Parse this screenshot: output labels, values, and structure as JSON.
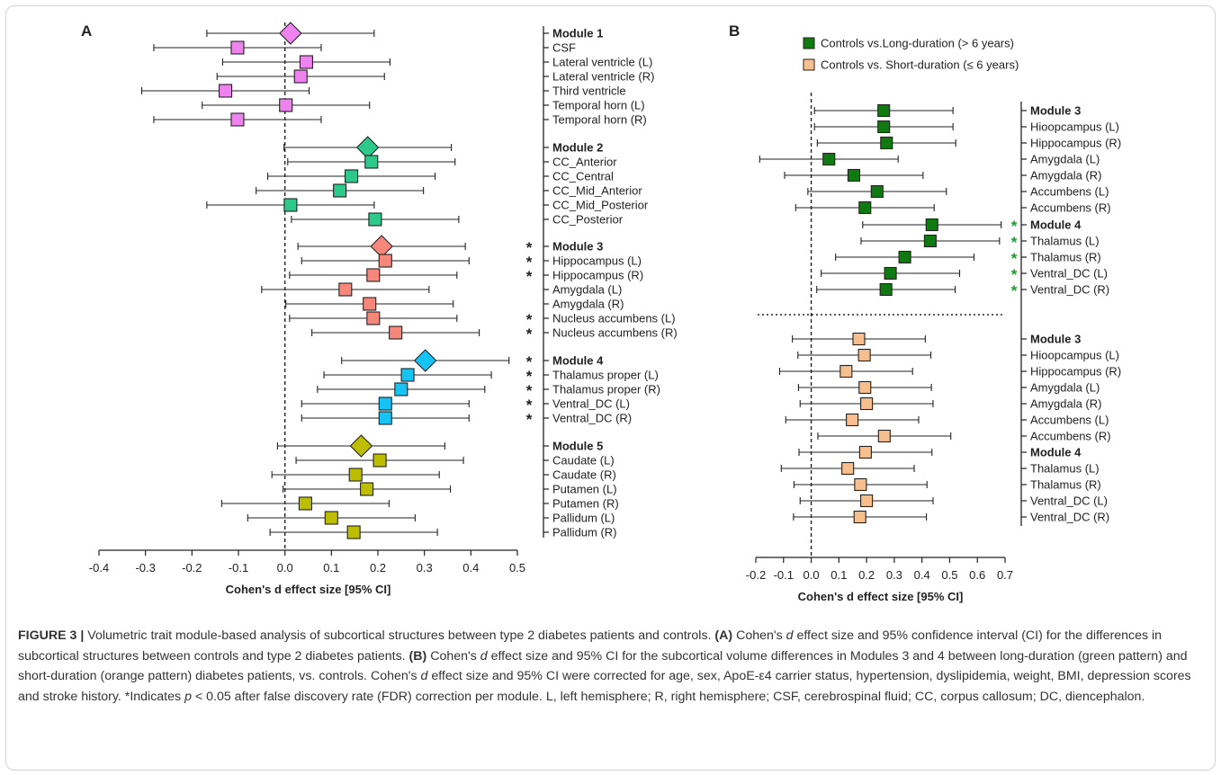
{
  "chart_data": [
    {
      "panel": "A",
      "type": "forest",
      "xlabel": "Cohen's d effect size [95% CI]",
      "xlim": [
        -0.4,
        0.5
      ],
      "xticks": [
        "-0.4",
        "-0.3",
        "-0.2",
        "-0.1",
        "0.0",
        "0.1",
        "0.2",
        "0.3",
        "0.4",
        "0.5"
      ],
      "reference_line": 0,
      "rows": [
        {
          "label": "Module 1",
          "bold": true,
          "value": 0.012,
          "lo": -0.168,
          "hi": 0.192,
          "marker": "diamond",
          "color": "#ee82ee",
          "sig": false
        },
        {
          "label": "CSF",
          "value": -0.102,
          "lo": -0.282,
          "hi": 0.078,
          "marker": "square",
          "color": "#ee82ee",
          "sig": false
        },
        {
          "label": "Lateral ventricle (L)",
          "value": 0.046,
          "lo": -0.134,
          "hi": 0.226,
          "marker": "square",
          "color": "#ee82ee",
          "sig": false
        },
        {
          "label": "Lateral ventricle (R)",
          "value": 0.034,
          "lo": -0.146,
          "hi": 0.214,
          "marker": "square",
          "color": "#ee82ee",
          "sig": false
        },
        {
          "label": "Third ventricle",
          "value": -0.128,
          "lo": -0.308,
          "hi": 0.052,
          "marker": "square",
          "color": "#ee82ee",
          "sig": false
        },
        {
          "label": "Temporal horn (L)",
          "value": 0.002,
          "lo": -0.178,
          "hi": 0.182,
          "marker": "square",
          "color": "#ee82ee",
          "sig": false
        },
        {
          "label": "Temporal horn (R)",
          "value": -0.102,
          "lo": -0.282,
          "hi": 0.078,
          "marker": "square",
          "color": "#ee82ee",
          "sig": false
        },
        {
          "label": "Module 2",
          "bold": true,
          "value": 0.178,
          "lo": -0.002,
          "hi": 0.358,
          "marker": "diamond",
          "color": "#2dc98a",
          "sig": false
        },
        {
          "label": "CC_Anterior",
          "value": 0.186,
          "lo": 0.006,
          "hi": 0.366,
          "marker": "square",
          "color": "#2dc98a",
          "sig": false
        },
        {
          "label": "CC_Central",
          "value": 0.143,
          "lo": -0.037,
          "hi": 0.323,
          "marker": "square",
          "color": "#2dc98a",
          "sig": false
        },
        {
          "label": "CC_Mid_Anterior",
          "value": 0.118,
          "lo": -0.062,
          "hi": 0.298,
          "marker": "square",
          "color": "#2dc98a",
          "sig": false
        },
        {
          "label": "CC_Mid_Posterior",
          "value": 0.012,
          "lo": -0.168,
          "hi": 0.192,
          "marker": "square",
          "color": "#2dc98a",
          "sig": false
        },
        {
          "label": "CC_Posterior",
          "value": 0.194,
          "lo": 0.014,
          "hi": 0.374,
          "marker": "square",
          "color": "#2dc98a",
          "sig": false
        },
        {
          "label": "Module 3",
          "bold": true,
          "value": 0.208,
          "lo": 0.028,
          "hi": 0.388,
          "marker": "diamond",
          "color": "#f7877a",
          "sig": true
        },
        {
          "label": "Hippocampus (L)",
          "value": 0.216,
          "lo": 0.036,
          "hi": 0.396,
          "marker": "square",
          "color": "#f7877a",
          "sig": true
        },
        {
          "label": "Hippocampus (R)",
          "value": 0.19,
          "lo": 0.01,
          "hi": 0.37,
          "marker": "square",
          "color": "#f7877a",
          "sig": true
        },
        {
          "label": "Amygdala (L)",
          "value": 0.13,
          "lo": -0.05,
          "hi": 0.31,
          "marker": "square",
          "color": "#f7877a",
          "sig": false
        },
        {
          "label": "Amygdala (R)",
          "value": 0.182,
          "lo": 0.002,
          "hi": 0.362,
          "marker": "square",
          "color": "#f7877a",
          "sig": false
        },
        {
          "label": "Nucleus accumbens (L)",
          "value": 0.19,
          "lo": 0.01,
          "hi": 0.37,
          "marker": "square",
          "color": "#f7877a",
          "sig": true
        },
        {
          "label": "Nucleus accumbens (R)",
          "value": 0.238,
          "lo": 0.058,
          "hi": 0.418,
          "marker": "square",
          "color": "#f7877a",
          "sig": true
        },
        {
          "label": "Module 4",
          "bold": true,
          "value": 0.302,
          "lo": 0.122,
          "hi": 0.482,
          "marker": "diamond",
          "color": "#16c3f5",
          "sig": true
        },
        {
          "label": "Thalamus proper (L)",
          "value": 0.264,
          "lo": 0.084,
          "hi": 0.444,
          "marker": "square",
          "color": "#16c3f5",
          "sig": true
        },
        {
          "label": "Thalamus proper (R)",
          "value": 0.25,
          "lo": 0.07,
          "hi": 0.43,
          "marker": "square",
          "color": "#16c3f5",
          "sig": true
        },
        {
          "label": "Ventral_DC (L)",
          "value": 0.216,
          "lo": 0.036,
          "hi": 0.396,
          "marker": "square",
          "color": "#16c3f5",
          "sig": true
        },
        {
          "label": "Ventral_DC (R)",
          "value": 0.216,
          "lo": 0.036,
          "hi": 0.396,
          "marker": "square",
          "color": "#16c3f5",
          "sig": true
        },
        {
          "label": "Module 5",
          "bold": true,
          "value": 0.164,
          "lo": -0.016,
          "hi": 0.344,
          "marker": "diamond",
          "color": "#bdbd00",
          "sig": false
        },
        {
          "label": "Caudate (L)",
          "value": 0.204,
          "lo": 0.024,
          "hi": 0.384,
          "marker": "square",
          "color": "#bdbd00",
          "sig": false
        },
        {
          "label": "Caudate (R)",
          "value": 0.152,
          "lo": -0.028,
          "hi": 0.332,
          "marker": "square",
          "color": "#bdbd00",
          "sig": false
        },
        {
          "label": "Putamen (L)",
          "value": 0.176,
          "lo": -0.004,
          "hi": 0.356,
          "marker": "square",
          "color": "#bdbd00",
          "sig": false
        },
        {
          "label": "Putamen (R)",
          "value": 0.044,
          "lo": -0.136,
          "hi": 0.224,
          "marker": "square",
          "color": "#bdbd00",
          "sig": false
        },
        {
          "label": "Pallidum (L)",
          "value": 0.1,
          "lo": -0.08,
          "hi": 0.28,
          "marker": "square",
          "color": "#bdbd00",
          "sig": false
        },
        {
          "label": "Pallidum (R)",
          "value": 0.148,
          "lo": -0.032,
          "hi": 0.328,
          "marker": "square",
          "color": "#bdbd00",
          "sig": false
        }
      ]
    },
    {
      "panel": "B",
      "type": "forest",
      "xlabel": "Cohen's d effect size [95% CI]",
      "xlim": [
        -0.2,
        0.7
      ],
      "xticks": [
        "-0.2",
        "-0.1",
        "0.0",
        "0.1",
        "0.2",
        "0.3",
        "0.4",
        "0.5",
        "0.6",
        "0.7"
      ],
      "reference_line": 0,
      "legend": [
        {
          "name": "Controls vs.Long-duration (> 6 years)",
          "color": "#0f7a0f"
        },
        {
          "name": "Controls vs. Short-duration (≤ 6 years)",
          "color": "#f7be8e"
        }
      ],
      "rows": [
        {
          "label": "Module 3",
          "bold": true,
          "value": 0.262,
          "lo": 0.012,
          "hi": 0.512,
          "marker": "square",
          "color": "#0f7a0f",
          "sig": false
        },
        {
          "label": "Hioopcampus (L)",
          "value": 0.262,
          "lo": 0.012,
          "hi": 0.512,
          "marker": "square",
          "color": "#0f7a0f",
          "sig": false
        },
        {
          "label": "Hippocampus (R)",
          "value": 0.272,
          "lo": 0.022,
          "hi": 0.522,
          "marker": "square",
          "color": "#0f7a0f",
          "sig": false
        },
        {
          "label": "Amygdala (L)",
          "value": 0.064,
          "lo": -0.186,
          "hi": 0.314,
          "marker": "square",
          "color": "#0f7a0f",
          "sig": false
        },
        {
          "label": "Amygdala (R)",
          "value": 0.154,
          "lo": -0.096,
          "hi": 0.404,
          "marker": "square",
          "color": "#0f7a0f",
          "sig": false
        },
        {
          "label": "Accumbens (L)",
          "value": 0.238,
          "lo": -0.012,
          "hi": 0.488,
          "marker": "square",
          "color": "#0f7a0f",
          "sig": false
        },
        {
          "label": "Accumbens (R)",
          "value": 0.194,
          "lo": -0.056,
          "hi": 0.444,
          "marker": "square",
          "color": "#0f7a0f",
          "sig": false
        },
        {
          "label": "Module 4",
          "bold": true,
          "value": 0.436,
          "lo": 0.186,
          "hi": 0.686,
          "marker": "square",
          "color": "#0f7a0f",
          "sig": true
        },
        {
          "label": "Thalamus (L)",
          "value": 0.43,
          "lo": 0.18,
          "hi": 0.68,
          "marker": "square",
          "color": "#0f7a0f",
          "sig": true
        },
        {
          "label": "Thalamus (R)",
          "value": 0.338,
          "lo": 0.088,
          "hi": 0.588,
          "marker": "square",
          "color": "#0f7a0f",
          "sig": true
        },
        {
          "label": "Ventral_DC (L)",
          "value": 0.286,
          "lo": 0.036,
          "hi": 0.536,
          "marker": "square",
          "color": "#0f7a0f",
          "sig": true
        },
        {
          "label": "Ventral_DC (R)",
          "value": 0.27,
          "lo": 0.02,
          "hi": 0.52,
          "marker": "square",
          "color": "#0f7a0f",
          "sig": true
        },
        {
          "label": "Module 3",
          "bold": true,
          "value": 0.172,
          "lo": -0.068,
          "hi": 0.412,
          "marker": "square",
          "color": "#f7be8e",
          "sig": false
        },
        {
          "label": "Hioopcampus (L)",
          "value": 0.192,
          "lo": -0.048,
          "hi": 0.432,
          "marker": "square",
          "color": "#f7be8e",
          "sig": false
        },
        {
          "label": "Hippocampus (R)",
          "value": 0.126,
          "lo": -0.114,
          "hi": 0.366,
          "marker": "square",
          "color": "#f7be8e",
          "sig": false
        },
        {
          "label": "Amygdala (L)",
          "value": 0.194,
          "lo": -0.046,
          "hi": 0.434,
          "marker": "square",
          "color": "#f7be8e",
          "sig": false
        },
        {
          "label": "Amygdala (R)",
          "value": 0.2,
          "lo": -0.04,
          "hi": 0.44,
          "marker": "square",
          "color": "#f7be8e",
          "sig": false
        },
        {
          "label": "Accumbens (L)",
          "value": 0.148,
          "lo": -0.092,
          "hi": 0.388,
          "marker": "square",
          "color": "#f7be8e",
          "sig": false
        },
        {
          "label": "Accumbens (R)",
          "value": 0.264,
          "lo": 0.024,
          "hi": 0.504,
          "marker": "square",
          "color": "#f7be8e",
          "sig": false
        },
        {
          "label": "Module 4",
          "bold": true,
          "value": 0.196,
          "lo": -0.044,
          "hi": 0.436,
          "marker": "square",
          "color": "#f7be8e",
          "sig": false
        },
        {
          "label": "Thalamus (L)",
          "value": 0.132,
          "lo": -0.108,
          "hi": 0.372,
          "marker": "square",
          "color": "#f7be8e",
          "sig": false
        },
        {
          "label": "Thalamus (R)",
          "value": 0.178,
          "lo": -0.062,
          "hi": 0.418,
          "marker": "square",
          "color": "#f7be8e",
          "sig": false
        },
        {
          "label": "Ventral_DC (L)",
          "value": 0.2,
          "lo": -0.04,
          "hi": 0.44,
          "marker": "square",
          "color": "#f7be8e",
          "sig": false
        },
        {
          "label": "Ventral_DC (R)",
          "value": 0.176,
          "lo": -0.064,
          "hi": 0.416,
          "marker": "square",
          "color": "#f7be8e",
          "sig": false
        }
      ]
    }
  ],
  "panel_labels": {
    "a": "A",
    "b": "B"
  },
  "significance_marker": "*",
  "caption": {
    "lead": "FIGURE 3 |",
    "s1": " Volumetric trait module-based analysis of subcortical structures between type 2 diabetes patients and controls. ",
    "a_label": "(A)",
    "s2": " Cohen's ",
    "d1": "d",
    "s3": " effect size and 95% confidence interval (CI) for the differences in subcortical structures between controls and type 2 diabetes patients. ",
    "b_label": "(B)",
    "s4": " Cohen's ",
    "d2": "d",
    "s5": " effect size and 95% CI for the subcortical volume differences in Modules 3 and 4 between long-duration (green pattern) and short-duration (orange pattern) diabetes patients, vs. controls. Cohen's ",
    "d3": "d",
    "s6": " effect size and 95% CI were corrected for age, sex, ApoE-ε4 carrier status, hypertension, dyslipidemia, weight, BMI, depression scores and stroke history. *Indicates ",
    "p": "p",
    "s7": " < 0.05 after false discovery rate (FDR) correction per module. L, left hemisphere; R, right hemisphere; CSF, cerebrospinal fluid; CC, corpus callosum; DC, diencephalon."
  }
}
